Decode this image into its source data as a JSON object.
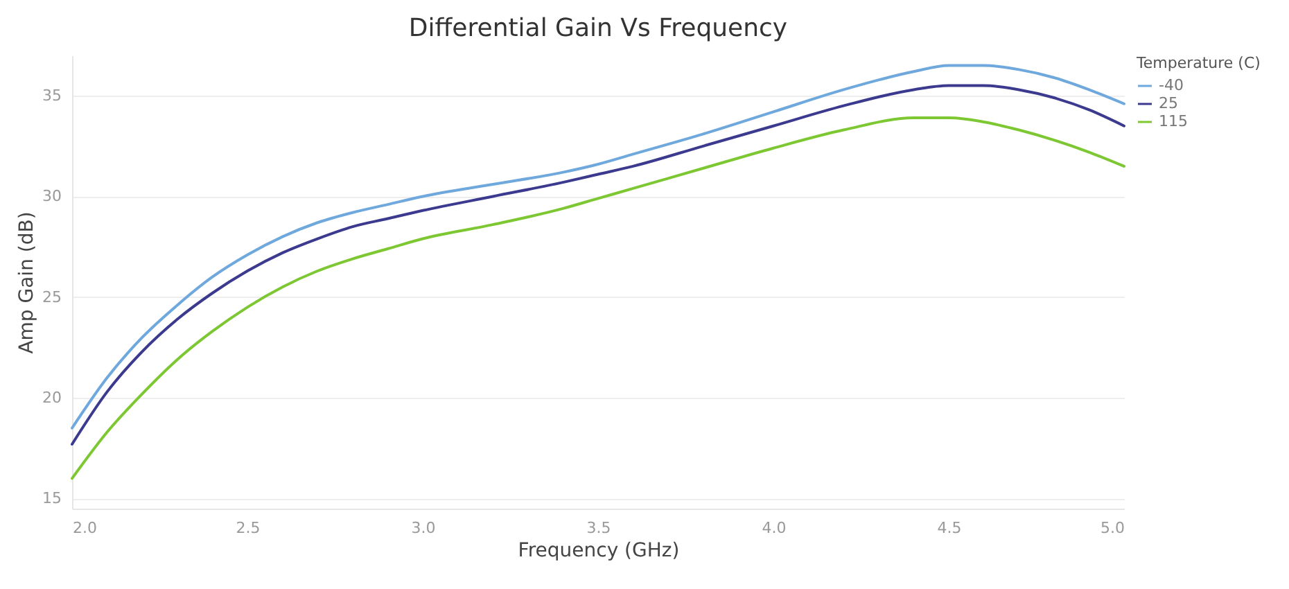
{
  "chart_data": {
    "type": "line",
    "title": "Differential Gain Vs Frequency",
    "xlabel": "Frequency (GHz)",
    "ylabel": "Amp Gain (dB)",
    "legend_title": "Temperature (C)",
    "x": [
      2.0,
      2.1,
      2.2,
      2.3,
      2.4,
      2.5,
      2.6,
      2.7,
      2.8,
      2.9,
      3.0,
      3.2,
      3.4,
      3.5,
      3.6,
      3.8,
      4.0,
      4.2,
      4.4,
      4.5,
      4.6,
      4.7,
      4.8,
      4.9,
      5.0
    ],
    "series": [
      {
        "name": "-40",
        "color": "#6fa8dc",
        "values": [
          18.5,
          21.0,
          23.0,
          24.6,
          26.0,
          27.1,
          28.0,
          28.7,
          29.2,
          29.6,
          30.0,
          30.6,
          31.2,
          31.6,
          32.1,
          33.1,
          34.2,
          35.3,
          36.2,
          36.5,
          36.5,
          36.3,
          35.9,
          35.3,
          34.6
        ]
      },
      {
        "name": "25",
        "color": "#3b3a8f",
        "values": [
          17.7,
          20.3,
          22.3,
          23.9,
          25.2,
          26.3,
          27.2,
          27.9,
          28.5,
          28.9,
          29.3,
          30.0,
          30.7,
          31.1,
          31.5,
          32.5,
          33.5,
          34.5,
          35.3,
          35.5,
          35.5,
          35.3,
          34.9,
          34.3,
          33.5
        ]
      },
      {
        "name": "115",
        "color": "#7dc832",
        "values": [
          16.0,
          18.3,
          20.2,
          21.9,
          23.3,
          24.5,
          25.5,
          26.3,
          26.9,
          27.4,
          27.9,
          28.6,
          29.4,
          29.9,
          30.4,
          31.4,
          32.4,
          33.3,
          33.9,
          33.9,
          33.7,
          33.3,
          32.8,
          32.2,
          31.5
        ]
      }
    ],
    "xlim": [
      2,
      5
    ],
    "ylim": [
      14.5,
      37
    ],
    "xticks": [
      {
        "value": 2,
        "label": "2.0"
      },
      2.5,
      {
        "value": 3,
        "label": "3.0"
      },
      3.5,
      {
        "value": 4,
        "label": "4.0"
      },
      4.5,
      {
        "value": 5,
        "label": "5.0"
      }
    ],
    "yticks": [
      15,
      20,
      25,
      30,
      35
    ],
    "grid": "y",
    "legend": "right",
    "line_style": "solid",
    "marker": "none"
  }
}
